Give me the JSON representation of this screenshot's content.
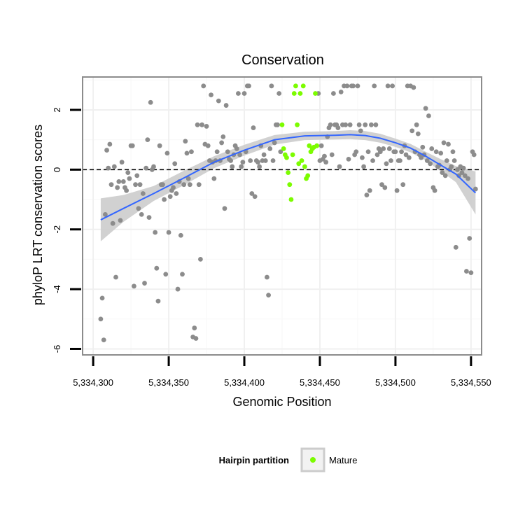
{
  "chart_data": {
    "type": "scatter",
    "title": "Conservation",
    "xlabel": "Genomic Position",
    "ylabel": "phyloP LRT conservation scores",
    "xlim": [
      5334293,
      5334557
    ],
    "ylim": [
      -6.2,
      3.1
    ],
    "x_ticks": [
      5334300,
      5334350,
      5334400,
      5334450,
      5334500,
      5334550
    ],
    "x_tick_labels": [
      "5,334,300",
      "5,334,350",
      "5,334,400",
      "5,334,450",
      "5,334,500",
      "5,334,550"
    ],
    "y_ticks": [
      -6,
      -4,
      -2,
      0,
      2
    ],
    "y_tick_labels": [
      "-6",
      "-4",
      "-2",
      "0",
      "2"
    ],
    "grid": true,
    "reference_line": {
      "y": 0,
      "style": "dashed",
      "color": "#000000"
    },
    "legend": {
      "title": "Hairpin partition",
      "entries": [
        "Mature"
      ],
      "placement": "bottom"
    },
    "colors": {
      "other": "#8c8c8c",
      "mature": "#7cfc00",
      "smooth": "#3366ff",
      "ribbon": "#cccccc",
      "panel_border": "#8c8c8c",
      "grid": "#f0f0f0"
    },
    "series": [
      {
        "name": "Mature",
        "color": "#7cfc00",
        "points": [
          [
            5334425,
            1.5
          ],
          [
            5334426,
            0.7
          ],
          [
            5334427,
            0.5
          ],
          [
            5334428,
            0.4
          ],
          [
            5334429,
            -0.1
          ],
          [
            5334430,
            -0.5
          ],
          [
            5334431,
            -1.0
          ],
          [
            5334432,
            0.5
          ],
          [
            5334433,
            2.55
          ],
          [
            5334434,
            2.8
          ],
          [
            5334435,
            1.5
          ],
          [
            5334436,
            0.2
          ],
          [
            5334437,
            2.55
          ],
          [
            5334438,
            0.3
          ],
          [
            5334439,
            2.8
          ],
          [
            5334440,
            0.1
          ],
          [
            5334441,
            -0.3
          ],
          [
            5334442,
            -0.2
          ],
          [
            5334443,
            0.8
          ],
          [
            5334444,
            0.6
          ],
          [
            5334445,
            0.7
          ],
          [
            5334446,
            0.75
          ],
          [
            5334447,
            2.55
          ],
          [
            5334448,
            0.8
          ]
        ]
      },
      {
        "name": "",
        "color": "#8c8c8c",
        "points": [
          [
            5334305,
            -5.0
          ],
          [
            5334306,
            -4.3
          ],
          [
            5334307,
            -5.7
          ],
          [
            5334308,
            -1.5
          ],
          [
            5334309,
            0.65
          ],
          [
            5334310,
            0.05
          ],
          [
            5334311,
            0.85
          ],
          [
            5334312,
            -0.5
          ],
          [
            5334313,
            -1.8
          ],
          [
            5334314,
            0.1
          ],
          [
            5334315,
            -3.6
          ],
          [
            5334316,
            -0.6
          ],
          [
            5334317,
            -0.4
          ],
          [
            5334318,
            -1.7
          ],
          [
            5334319,
            0.25
          ],
          [
            5334320,
            -0.4
          ],
          [
            5334321,
            -0.6
          ],
          [
            5334322,
            -0.7
          ],
          [
            5334323,
            -0.1
          ],
          [
            5334324,
            -0.3
          ],
          [
            5334325,
            0.8
          ],
          [
            5334326,
            0.8
          ],
          [
            5334327,
            -3.9
          ],
          [
            5334328,
            -0.5
          ],
          [
            5334329,
            -0.2
          ],
          [
            5334330,
            -1.3
          ],
          [
            5334331,
            -0.5
          ],
          [
            5334332,
            -1.5
          ],
          [
            5334333,
            -0.8
          ],
          [
            5334334,
            -3.8
          ],
          [
            5334335,
            0.05
          ],
          [
            5334336,
            1.0
          ],
          [
            5334337,
            -1.6
          ],
          [
            5334338,
            2.25
          ],
          [
            5334339,
            0.0
          ],
          [
            5334340,
            0.1
          ],
          [
            5334341,
            -2.1
          ],
          [
            5334342,
            -3.3
          ],
          [
            5334343,
            -4.4
          ],
          [
            5334344,
            0.8
          ],
          [
            5334345,
            -0.5
          ],
          [
            5334346,
            -0.5
          ],
          [
            5334347,
            -1.0
          ],
          [
            5334348,
            -3.5
          ],
          [
            5334349,
            0.55
          ],
          [
            5334350,
            -2.1
          ],
          [
            5334351,
            -0.9
          ],
          [
            5334352,
            -0.7
          ],
          [
            5334353,
            -0.6
          ],
          [
            5334354,
            0.2
          ],
          [
            5334355,
            -0.8
          ],
          [
            5334356,
            -4.0
          ],
          [
            5334357,
            -0.4
          ],
          [
            5334358,
            -2.2
          ],
          [
            5334359,
            -3.5
          ],
          [
            5334360,
            -0.5
          ],
          [
            5334361,
            0.95
          ],
          [
            5334362,
            0.55
          ],
          [
            5334363,
            -0.3
          ],
          [
            5334364,
            -0.5
          ],
          [
            5334365,
            0.6
          ],
          [
            5334366,
            -5.6
          ],
          [
            5334367,
            -5.3
          ],
          [
            5334368,
            -5.65
          ],
          [
            5334369,
            1.5
          ],
          [
            5334370,
            -0.5
          ],
          [
            5334371,
            -3.0
          ],
          [
            5334372,
            1.5
          ],
          [
            5334373,
            2.8
          ],
          [
            5334374,
            0.85
          ],
          [
            5334375,
            1.45
          ],
          [
            5334376,
            0.8
          ],
          [
            5334377,
            0.3
          ],
          [
            5334378,
            2.5
          ],
          [
            5334379,
            0.25
          ],
          [
            5334380,
            -0.3
          ],
          [
            5334381,
            0.3
          ],
          [
            5334382,
            0.6
          ],
          [
            5334383,
            2.3
          ],
          [
            5334384,
            0.3
          ],
          [
            5334385,
            0.9
          ],
          [
            5334386,
            1.1
          ],
          [
            5334387,
            -1.3
          ],
          [
            5334388,
            2.15
          ],
          [
            5334389,
            0.6
          ],
          [
            5334390,
            0.35
          ],
          [
            5334391,
            0.3
          ],
          [
            5334392,
            0.1
          ],
          [
            5334393,
            0.5
          ],
          [
            5334394,
            0.8
          ],
          [
            5334395,
            0.7
          ],
          [
            5334396,
            2.55
          ],
          [
            5334397,
            0.5
          ],
          [
            5334398,
            0.1
          ],
          [
            5334399,
            0.25
          ],
          [
            5334400,
            2.55
          ],
          [
            5334401,
            0.6
          ],
          [
            5334402,
            2.8
          ],
          [
            5334403,
            2.8
          ],
          [
            5334404,
            0.3
          ],
          [
            5334405,
            -0.8
          ],
          [
            5334406,
            1.4
          ],
          [
            5334407,
            -0.9
          ],
          [
            5334408,
            0.3
          ],
          [
            5334409,
            0.25
          ],
          [
            5334410,
            0.1
          ],
          [
            5334411,
            0.8
          ],
          [
            5334412,
            0.3
          ],
          [
            5334413,
            0.5
          ],
          [
            5334414,
            0.3
          ],
          [
            5334415,
            -3.6
          ],
          [
            5334416,
            -4.2
          ],
          [
            5334417,
            0.7
          ],
          [
            5334418,
            2.8
          ],
          [
            5334419,
            0.3
          ],
          [
            5334420,
            0.9
          ],
          [
            5334421,
            1.5
          ],
          [
            5334422,
            1.5
          ],
          [
            5334423,
            2.55
          ],
          [
            5334424,
            0.6
          ],
          [
            5334449,
            2.55
          ],
          [
            5334450,
            0.3
          ],
          [
            5334451,
            0.8
          ],
          [
            5334452,
            0.35
          ],
          [
            5334453,
            0.45
          ],
          [
            5334454,
            0.25
          ],
          [
            5334455,
            1.1
          ],
          [
            5334456,
            1.4
          ],
          [
            5334457,
            1.5
          ],
          [
            5334458,
            0.5
          ],
          [
            5334459,
            2.55
          ],
          [
            5334460,
            1.5
          ],
          [
            5334461,
            1.5
          ],
          [
            5334462,
            1.4
          ],
          [
            5334463,
            0.1
          ],
          [
            5334464,
            2.6
          ],
          [
            5334465,
            1.5
          ],
          [
            5334466,
            2.8
          ],
          [
            5334467,
            1.5
          ],
          [
            5334468,
            2.8
          ],
          [
            5334469,
            0.35
          ],
          [
            5334470,
            1.5
          ],
          [
            5334471,
            2.8
          ],
          [
            5334472,
            2.8
          ],
          [
            5334473,
            0.5
          ],
          [
            5334474,
            0.6
          ],
          [
            5334475,
            2.8
          ],
          [
            5334476,
            1.5
          ],
          [
            5334477,
            1.3
          ],
          [
            5334478,
            0.4
          ],
          [
            5334479,
            0.1
          ],
          [
            5334480,
            1.5
          ],
          [
            5334481,
            -0.85
          ],
          [
            5334482,
            0.6
          ],
          [
            5334483,
            -0.7
          ],
          [
            5334484,
            1.5
          ],
          [
            5334485,
            0.3
          ],
          [
            5334486,
            2.8
          ],
          [
            5334487,
            1.5
          ],
          [
            5334488,
            0.5
          ],
          [
            5334489,
            0.7
          ],
          [
            5334490,
            0.6
          ],
          [
            5334491,
            -0.5
          ],
          [
            5334492,
            0.7
          ],
          [
            5334493,
            -0.6
          ],
          [
            5334494,
            0.2
          ],
          [
            5334495,
            2.8
          ],
          [
            5334496,
            0.7
          ],
          [
            5334497,
            0.3
          ],
          [
            5334498,
            2.8
          ],
          [
            5334499,
            0.6
          ],
          [
            5334500,
            0.6
          ],
          [
            5334501,
            -0.7
          ],
          [
            5334502,
            0.3
          ],
          [
            5334503,
            0.3
          ],
          [
            5334504,
            0.6
          ],
          [
            5334505,
            -0.5
          ],
          [
            5334506,
            0.8
          ],
          [
            5334507,
            0.5
          ],
          [
            5334508,
            2.8
          ],
          [
            5334509,
            0.4
          ],
          [
            5334510,
            2.8
          ],
          [
            5334511,
            1.3
          ],
          [
            5334512,
            2.75
          ],
          [
            5334513,
            0.6
          ],
          [
            5334514,
            1.5
          ],
          [
            5334515,
            1.2
          ],
          [
            5334516,
            0.5
          ],
          [
            5334517,
            0.4
          ],
          [
            5334518,
            0.75
          ],
          [
            5334519,
            0.5
          ],
          [
            5334520,
            2.05
          ],
          [
            5334521,
            0.3
          ],
          [
            5334522,
            1.8
          ],
          [
            5334523,
            0.2
          ],
          [
            5334524,
            0.7
          ],
          [
            5334525,
            -0.6
          ],
          [
            5334526,
            -0.7
          ],
          [
            5334527,
            0.6
          ],
          [
            5334528,
            0.1
          ],
          [
            5334529,
            0.15
          ],
          [
            5334530,
            0.55
          ],
          [
            5334531,
            -0.1
          ],
          [
            5334532,
            0.9
          ],
          [
            5334533,
            -0.2
          ],
          [
            5334534,
            0.3
          ],
          [
            5334535,
            0.85
          ],
          [
            5334536,
            0.0
          ],
          [
            5334537,
            0.1
          ],
          [
            5334538,
            0.6
          ],
          [
            5334539,
            0.3
          ],
          [
            5334540,
            -2.6
          ],
          [
            5334541,
            0.0
          ],
          [
            5334542,
            -0.2
          ],
          [
            5334543,
            0.1
          ],
          [
            5334544,
            -0.1
          ],
          [
            5334545,
            0.05
          ],
          [
            5334546,
            -0.2
          ],
          [
            5334547,
            -3.4
          ],
          [
            5334548,
            -0.3
          ],
          [
            5334549,
            -2.3
          ],
          [
            5334550,
            -3.45
          ],
          [
            5334551,
            0.6
          ],
          [
            5334552,
            0.5
          ],
          [
            5334553,
            -0.65
          ]
        ]
      }
    ],
    "smooth": {
      "method": "loess",
      "x": [
        5334305,
        5334320,
        5334340,
        5334360,
        5334380,
        5334400,
        5334420,
        5334440,
        5334460,
        5334470,
        5334480,
        5334490,
        5334500,
        5334510,
        5334520,
        5334530,
        5334540,
        5334553
      ],
      "y": [
        -1.68,
        -1.3,
        -0.8,
        -0.28,
        0.25,
        0.65,
        1.0,
        1.13,
        1.15,
        1.17,
        1.14,
        1.05,
        0.9,
        0.72,
        0.45,
        0.15,
        -0.15,
        -0.78
      ],
      "ci_low": [
        -2.4,
        -1.75,
        -1.05,
        -0.52,
        0.05,
        0.47,
        0.84,
        0.99,
        1.01,
        1.02,
        0.99,
        0.9,
        0.76,
        0.58,
        0.3,
        -0.05,
        -0.42,
        -1.5
      ],
      "ci_high": [
        -0.96,
        -0.85,
        -0.55,
        -0.04,
        0.45,
        0.83,
        1.16,
        1.27,
        1.29,
        1.32,
        1.29,
        1.2,
        1.04,
        0.86,
        0.6,
        0.35,
        0.12,
        -0.06
      ]
    }
  }
}
